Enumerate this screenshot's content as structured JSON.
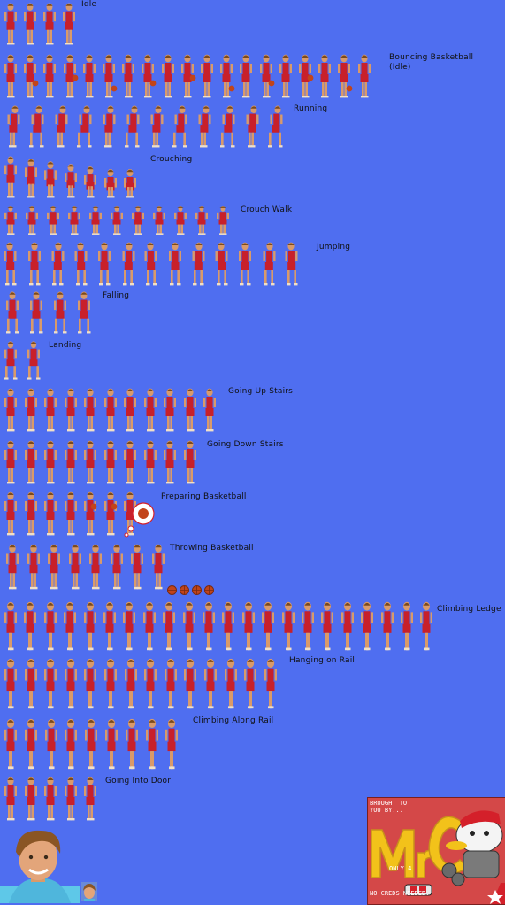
{
  "colors": {
    "background": "#4f6ef0",
    "jersey": "#c8202a",
    "skin": "#d99a6a",
    "hair": "#7a4a1c",
    "ball": "#c2441a",
    "logo_yellow": "#f2c21a"
  },
  "animations": [
    {
      "key": "idle",
      "label": "Idle",
      "frames": 4
    },
    {
      "key": "bouncing",
      "label": "Bouncing Basketball\n(Idle)",
      "frames": 19
    },
    {
      "key": "running",
      "label": "Running",
      "frames": 12
    },
    {
      "key": "crouching",
      "label": "Crouching",
      "frames": 7
    },
    {
      "key": "crouch_walk",
      "label": "Crouch Walk",
      "frames": 11
    },
    {
      "key": "jumping",
      "label": "Jumping",
      "frames": 13
    },
    {
      "key": "falling",
      "label": "Falling",
      "frames": 4
    },
    {
      "key": "landing",
      "label": "Landing",
      "frames": 2
    },
    {
      "key": "up_stairs",
      "label": "Going Up Stairs",
      "frames": 11
    },
    {
      "key": "down_stairs",
      "label": "Going Down Stairs",
      "frames": 10
    },
    {
      "key": "preparing",
      "label": "Preparing Basketball",
      "frames": 7
    },
    {
      "key": "throwing",
      "label": "Throwing Basketball",
      "frames": 8
    },
    {
      "key": "climbing_ledge",
      "label": "Climbing Ledge",
      "frames": 22
    },
    {
      "key": "hanging_rail",
      "label": "Hanging on Rail",
      "frames": 14
    },
    {
      "key": "climbing_rail",
      "label": "Climbing Along Rail",
      "frames": 9
    },
    {
      "key": "into_door",
      "label": "Going Into Door",
      "frames": 5
    }
  ],
  "credit": {
    "brought_by": "BROUGHT TO\nYOU BY...",
    "logo": "MrC",
    "only": "ONLY 4",
    "no_creds": "NO CREDS NEEDED."
  }
}
